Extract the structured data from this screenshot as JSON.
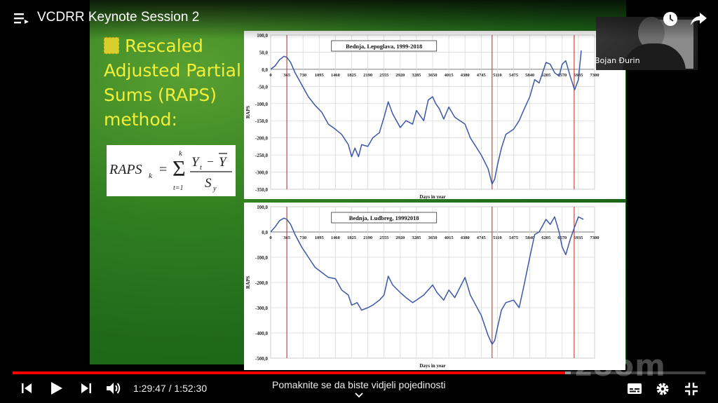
{
  "player": {
    "title": "VCDRR Keynote Session 2",
    "time_current": "1:29:47",
    "time_sep": " / ",
    "time_total": "1:52:30",
    "scroll_hint": "Pomaknite se da biste vidjeli pojedinosti",
    "progress_played": 0.798,
    "progress_loaded": 0.806,
    "accent_color": "#ff0000"
  },
  "meeting": {
    "speaker_name": "Bojan Đurin",
    "watermark": "zoom"
  },
  "slide": {
    "title_line1": "Rescaled",
    "title_line2": "Adjusted Partial",
    "title_line3": "Sums (RAPS)",
    "title_line4": "method:",
    "formula_lhs": "RAPS",
    "formula_lhs_sub": "k",
    "formula_eq": "=",
    "formula_sum_top": "k",
    "formula_sum_bottom": "t=1",
    "formula_num": "Y",
    "formula_num_sub": "t",
    "formula_minus": "−",
    "formula_num_bar": "Y",
    "formula_den": "S",
    "formula_den_sub": "y"
  },
  "chart_data": [
    {
      "type": "line",
      "title": "Bednja, Lepoglava, 1999-2018",
      "xlabel": "Days in year",
      "ylabel": "RAPS",
      "xticks": [
        "0",
        "365",
        "730",
        "1095",
        "1460",
        "1825",
        "2190",
        "2555",
        "2920",
        "3285",
        "3650",
        "4015",
        "4380",
        "4745",
        "5110",
        "5475",
        "5840",
        "6205",
        "6570",
        "6935",
        "7300"
      ],
      "yticks": [
        "100,0",
        "50,0",
        "0,0",
        "-50,0",
        "-100,0",
        "-150,0",
        "-200,0",
        "-250,0",
        "-300,0",
        "-350,0"
      ],
      "xlim": [
        0,
        7300
      ],
      "ylim": [
        -350,
        100
      ],
      "grid": true,
      "vlines": [
        365,
        4990,
        6840
      ],
      "line_color": "#3b57a8",
      "marker_color": "#c0392b",
      "x": [
        0,
        100,
        200,
        300,
        365,
        450,
        550,
        700,
        850,
        1000,
        1150,
        1300,
        1460,
        1600,
        1750,
        1825,
        1900,
        1980,
        2050,
        2190,
        2300,
        2450,
        2555,
        2650,
        2750,
        2920,
        3050,
        3200,
        3285,
        3450,
        3550,
        3650,
        3720,
        3800,
        3900,
        4015,
        4150,
        4380,
        4500,
        4745,
        4900,
        4990,
        5050,
        5110,
        5200,
        5300,
        5475,
        5600,
        5700,
        5840,
        5950,
        6050,
        6205,
        6300,
        6400,
        6500,
        6570,
        6650,
        6750,
        6850,
        6935,
        7000
      ],
      "y": [
        0,
        10,
        28,
        38,
        35,
        20,
        -10,
        -45,
        -80,
        -105,
        -125,
        -160,
        -175,
        -190,
        -220,
        -255,
        -230,
        -255,
        -220,
        -225,
        -200,
        -185,
        -140,
        -95,
        -130,
        -170,
        -150,
        -160,
        -120,
        -150,
        -90,
        -80,
        -100,
        -115,
        -145,
        -110,
        -140,
        -160,
        -200,
        -250,
        -290,
        -335,
        -320,
        -280,
        -230,
        -190,
        -175,
        -150,
        -120,
        -80,
        -30,
        -40,
        20,
        15,
        -10,
        -20,
        15,
        25,
        -20,
        -60,
        -30,
        55
      ]
    },
    {
      "type": "line",
      "title": "Bednja, Ludbreg, 19992018",
      "xlabel": "Days in year",
      "ylabel": "RAPS",
      "xticks": [
        "0",
        "365",
        "730",
        "1095",
        "1460",
        "1825",
        "2190",
        "2555",
        "2920",
        "3285",
        "3650",
        "4015",
        "4380",
        "4745",
        "5110",
        "5475",
        "5840",
        "6205",
        "6570",
        "6935",
        "7300"
      ],
      "yticks": [
        "100,0",
        "0,0",
        "-100,0",
        "-200,0",
        "-300,0",
        "-400,0",
        "-500,0"
      ],
      "xlim": [
        0,
        7300
      ],
      "ylim": [
        -500,
        100
      ],
      "grid": true,
      "vlines": [
        365,
        4990,
        6840
      ],
      "line_color": "#3b57a8",
      "marker_color": "#c0392b",
      "x": [
        0,
        100,
        200,
        300,
        365,
        450,
        550,
        700,
        850,
        1000,
        1150,
        1300,
        1460,
        1600,
        1750,
        1825,
        1950,
        2050,
        2190,
        2300,
        2450,
        2555,
        2650,
        2750,
        2920,
        3050,
        3200,
        3285,
        3450,
        3550,
        3650,
        3750,
        3900,
        4015,
        4150,
        4380,
        4500,
        4745,
        4900,
        4990,
        5050,
        5110,
        5200,
        5300,
        5475,
        5600,
        5700,
        5840,
        5950,
        6050,
        6205,
        6300,
        6400,
        6500,
        6570,
        6650,
        6750,
        6850,
        6935,
        7050
      ],
      "y": [
        0,
        20,
        45,
        55,
        50,
        30,
        -10,
        -60,
        -100,
        -140,
        -160,
        -180,
        -185,
        -230,
        -250,
        -290,
        -280,
        -310,
        -300,
        -290,
        -270,
        -250,
        -175,
        -210,
        -240,
        -260,
        -280,
        -270,
        -250,
        -230,
        -210,
        -240,
        -270,
        -230,
        -260,
        -180,
        -250,
        -330,
        -410,
        -445,
        -430,
        -380,
        -310,
        -280,
        -270,
        -300,
        -220,
        -100,
        -10,
        0,
        50,
        30,
        60,
        0,
        -60,
        -90,
        -30,
        20,
        60,
        50
      ]
    }
  ],
  "icons": {
    "menu": "playlist-menu-icon",
    "clock": "watch-later-icon",
    "share": "share-icon",
    "prev": "previous-icon",
    "play": "play-icon",
    "next": "next-icon",
    "volume": "volume-icon",
    "subtitles": "subtitles-icon",
    "settings": "settings-gear-icon",
    "exit_fullscreen": "exit-fullscreen-icon",
    "chevron": "chevron-down-icon"
  }
}
